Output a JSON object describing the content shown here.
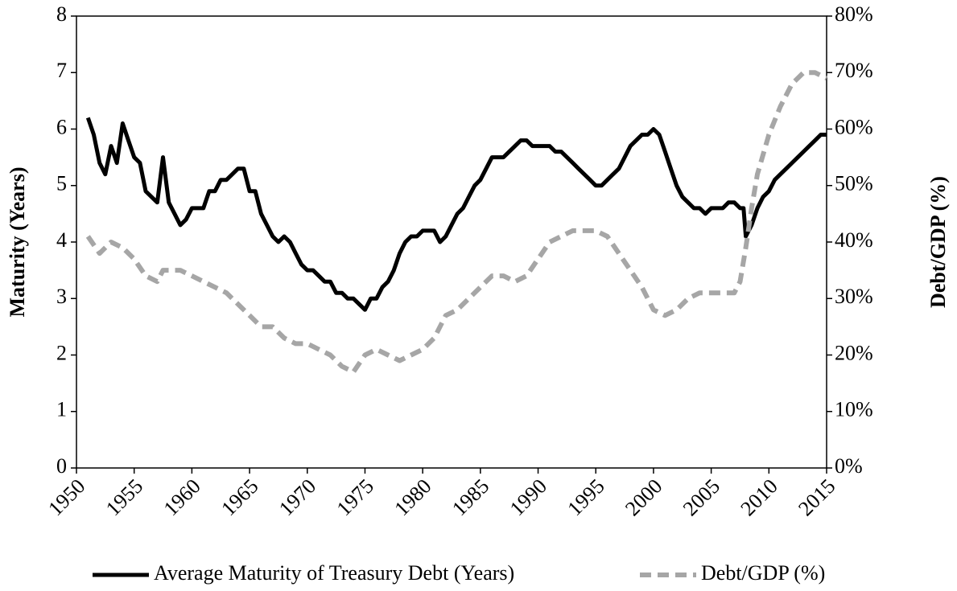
{
  "chart_data": {
    "type": "line",
    "ylabel": "Maturity (Years)",
    "y2label": "Debt/GDP (%)",
    "xlim": [
      1950,
      2015
    ],
    "xticks": [
      1950,
      1955,
      1960,
      1965,
      1970,
      1975,
      1980,
      1985,
      1990,
      1995,
      2000,
      2005,
      2010,
      2015
    ],
    "ylim": [
      0,
      8
    ],
    "yticks": [
      0,
      1,
      2,
      3,
      4,
      5,
      6,
      7,
      8
    ],
    "y2lim": [
      0,
      80
    ],
    "y2ticks": [
      {
        "value": 0,
        "label": "0%"
      },
      {
        "value": 10,
        "label": "10%"
      },
      {
        "value": 20,
        "label": "20%"
      },
      {
        "value": 30,
        "label": "30%"
      },
      {
        "value": 40,
        "label": "40%"
      },
      {
        "value": 50,
        "label": "50%"
      },
      {
        "value": 60,
        "label": "60%"
      },
      {
        "value": 70,
        "label": "70%"
      },
      {
        "value": 80,
        "label": "80%"
      }
    ],
    "legend": "bottom",
    "series": [
      {
        "name": "Average Maturity of Treasury Debt (Years)",
        "color": "#000000",
        "dash": false,
        "x": [
          1951,
          1951.5,
          1952,
          1952.5,
          1953,
          1953.5,
          1954,
          1954.5,
          1955,
          1955.5,
          1956,
          1956.5,
          1957,
          1957.5,
          1958,
          1958.5,
          1959,
          1959.5,
          1960,
          1960.5,
          1961,
          1961.5,
          1962,
          1962.5,
          1963,
          1963.5,
          1964,
          1964.5,
          1965,
          1965.5,
          1966,
          1966.5,
          1967,
          1967.5,
          1968,
          1968.5,
          1969,
          1969.5,
          1970,
          1970.5,
          1971,
          1971.5,
          1972,
          1972.5,
          1973,
          1973.5,
          1974,
          1974.5,
          1975,
          1975.5,
          1976,
          1976.5,
          1977,
          1977.5,
          1978,
          1978.5,
          1979,
          1979.5,
          1980,
          1980.5,
          1981,
          1981.5,
          1982,
          1982.5,
          1983,
          1983.5,
          1984,
          1984.5,
          1985,
          1985.5,
          1986,
          1986.5,
          1987,
          1987.5,
          1988,
          1988.5,
          1989,
          1989.5,
          1990,
          1990.5,
          1991,
          1991.5,
          1992,
          1992.5,
          1993,
          1993.5,
          1994,
          1994.5,
          1995,
          1995.5,
          1996,
          1996.5,
          1997,
          1997.5,
          1998,
          1998.5,
          1999,
          1999.5,
          2000,
          2000.5,
          2001,
          2001.5,
          2002,
          2002.5,
          2003,
          2003.5,
          2004,
          2004.5,
          2005,
          2005.5,
          2006,
          2006.5,
          2007,
          2007.5,
          2007.8,
          2008,
          2008.5,
          2009,
          2009.5,
          2010,
          2010.5,
          2011,
          2011.5,
          2012,
          2012.5,
          2013,
          2013.5,
          2014,
          2014.5,
          2015
        ],
        "values": [
          6.2,
          5.9,
          5.4,
          5.2,
          5.7,
          5.4,
          6.1,
          5.8,
          5.5,
          5.4,
          4.9,
          4.8,
          4.7,
          5.5,
          4.7,
          4.5,
          4.3,
          4.4,
          4.6,
          4.6,
          4.6,
          4.9,
          4.9,
          5.1,
          5.1,
          5.2,
          5.3,
          5.3,
          4.9,
          4.9,
          4.5,
          4.3,
          4.1,
          4.0,
          4.1,
          4.0,
          3.8,
          3.6,
          3.5,
          3.5,
          3.4,
          3.3,
          3.3,
          3.1,
          3.1,
          3.0,
          3.0,
          2.9,
          2.8,
          3.0,
          3.0,
          3.2,
          3.3,
          3.5,
          3.8,
          4.0,
          4.1,
          4.1,
          4.2,
          4.2,
          4.2,
          4.0,
          4.1,
          4.3,
          4.5,
          4.6,
          4.8,
          5.0,
          5.1,
          5.3,
          5.5,
          5.5,
          5.5,
          5.6,
          5.7,
          5.8,
          5.8,
          5.7,
          5.7,
          5.7,
          5.7,
          5.6,
          5.6,
          5.5,
          5.4,
          5.3,
          5.2,
          5.1,
          5.0,
          5.0,
          5.1,
          5.2,
          5.3,
          5.5,
          5.7,
          5.8,
          5.9,
          5.9,
          6.0,
          5.9,
          5.6,
          5.3,
          5.0,
          4.8,
          4.7,
          4.6,
          4.6,
          4.5,
          4.6,
          4.6,
          4.6,
          4.7,
          4.7,
          4.6,
          4.6,
          4.1,
          4.3,
          4.6,
          4.8,
          4.9,
          5.1,
          5.2,
          5.3,
          5.4,
          5.5,
          5.6,
          5.7,
          5.8,
          5.9,
          5.9
        ]
      },
      {
        "name": "Debt/GDP (%)",
        "color": "#a6a6a6",
        "dash": true,
        "axis": "y2",
        "x": [
          1951,
          1952,
          1953,
          1954,
          1955,
          1956,
          1957,
          1957.5,
          1958,
          1959,
          1960,
          1961,
          1962,
          1963,
          1964,
          1965,
          1966,
          1967,
          1968,
          1969,
          1970,
          1971,
          1972,
          1973,
          1974,
          1975,
          1976,
          1977,
          1978,
          1979,
          1980,
          1981,
          1982,
          1983,
          1984,
          1985,
          1986,
          1987,
          1988,
          1989,
          1990,
          1991,
          1992,
          1993,
          1994,
          1995,
          1996,
          1997,
          1998,
          1999,
          2000,
          2001,
          2002,
          2003,
          2004,
          2005,
          2006,
          2007,
          2007.5,
          2008,
          2008.5,
          2009,
          2010,
          2011,
          2012,
          2013,
          2014,
          2015
        ],
        "values": [
          41,
          38,
          40,
          39,
          37,
          34,
          33,
          35,
          35,
          35,
          34,
          33,
          32,
          31,
          29,
          27,
          25,
          25,
          23,
          22,
          22,
          21,
          20,
          18,
          17,
          20,
          21,
          20,
          19,
          20,
          21,
          23,
          27,
          28,
          30,
          32,
          34,
          34,
          33,
          34,
          37,
          40,
          41,
          42,
          42,
          42,
          41,
          38,
          35,
          32,
          28,
          27,
          28,
          30,
          31,
          31,
          31,
          31,
          33,
          39,
          46,
          52,
          59,
          64,
          68,
          70,
          70,
          69
        ]
      }
    ]
  }
}
